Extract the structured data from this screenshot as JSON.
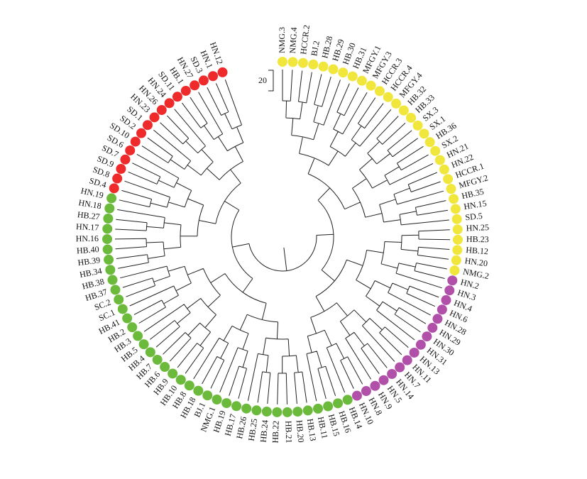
{
  "scale_label": "20",
  "groups": [
    {
      "color": "#f1e63c",
      "leaves": [
        "NMG.3",
        "NMG.4",
        "HCCR.2",
        "BJ.2",
        "HB.28",
        "HB.29",
        "HB.30",
        "HB.31",
        "MFGY.1",
        "MFGY.3",
        "HCCR.3",
        "HCCR.4",
        "MFGY.4",
        "HB.32",
        "HB.33",
        "SX.3",
        "SX.1",
        "HB.36",
        "SX.2",
        "HN.21",
        "HN.22",
        "HCCR.1",
        "MFGY.2",
        "HB.35",
        "HN.15",
        "SD.5",
        "HN.25",
        "HB.23",
        "HB.12",
        "HN.20",
        "NMG.2"
      ]
    },
    {
      "color": "#b050a8",
      "leaves": [
        "HN.2",
        "HN.3",
        "HN.4",
        "HN.6",
        "HN.28",
        "HN.29",
        "HN.30",
        "HN.31",
        "HN.13",
        "HN.11",
        "HN.7",
        "HN.14",
        "HN.5",
        "HN.9",
        "HN.8",
        "HN.10"
      ]
    },
    {
      "color": "#6cba3c",
      "leaves": [
        "HB.14",
        "HB.16",
        "HB.15",
        "HB.11",
        "HB.13",
        "HB.20",
        "HB.21",
        "HB.22",
        "HB.24",
        "HB.25",
        "HB.26",
        "HB.17",
        "HB.19",
        "NMG.1",
        "BJ.1",
        "HB.18",
        "HB.8",
        "HB.10",
        "HB.9",
        "HB.6",
        "HB.7",
        "HB.4",
        "HB.5",
        "HB.3",
        "HB.2",
        "HB.41",
        "SC.1",
        "SC.2",
        "HB.37",
        "HB.38",
        "HB.34",
        "HB.39",
        "HB.40",
        "HN.16",
        "HN.17",
        "HB.27",
        "HN.18",
        "HN.19"
      ]
    },
    {
      "color": "#ee2a2a",
      "leaves": [
        "SD.4",
        "SD.8",
        "SD.9",
        "SD.7",
        "SD.6",
        "SD.10",
        "SD.2",
        "SD.1",
        "HN.23",
        "HN.26",
        "HN.24",
        "SD.11",
        "HB.1",
        "HN.27",
        "SD.3",
        "HN.1",
        "HN.12"
      ]
    }
  ]
}
